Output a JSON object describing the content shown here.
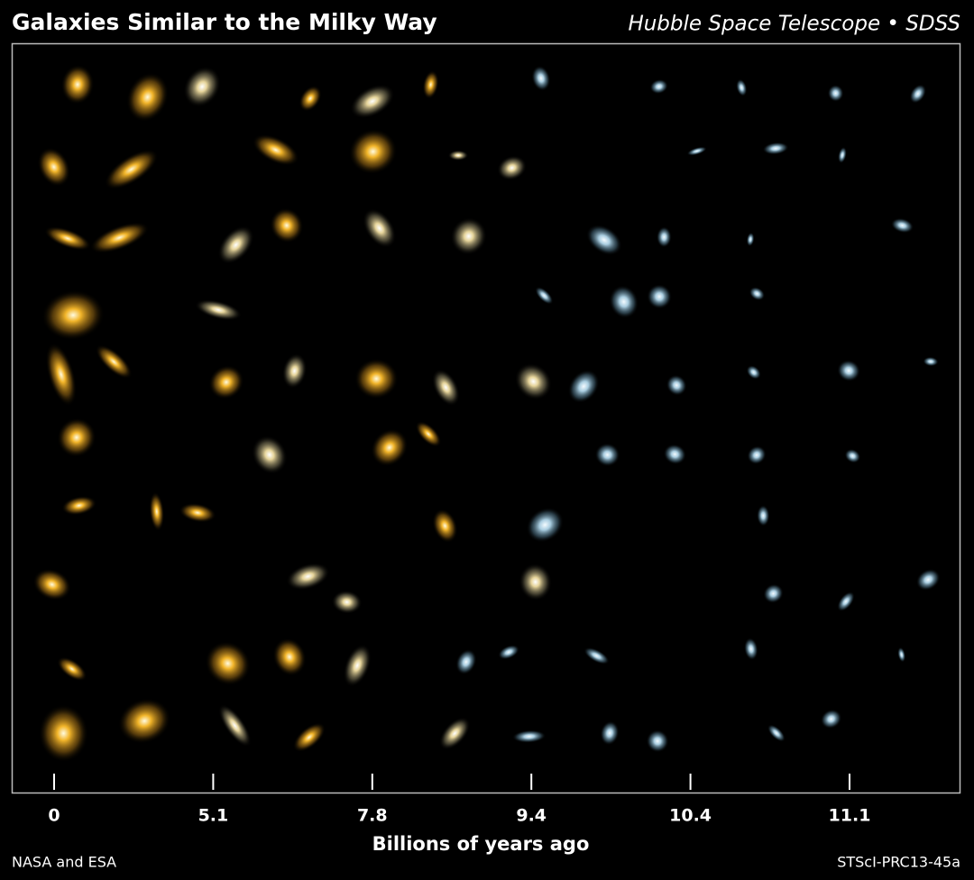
{
  "header": {
    "title": "Galaxies Similar to the Milky Way",
    "subtitle": "Hubble Space Telescope • SDSS"
  },
  "axis": {
    "ticks": [
      "0",
      "5.1",
      "7.8",
      "9.4",
      "10.4",
      "11.1"
    ],
    "title": "Billions of years ago"
  },
  "credits": {
    "left": "NASA and ESA",
    "right": "STScI-PRC13-45a"
  }
}
